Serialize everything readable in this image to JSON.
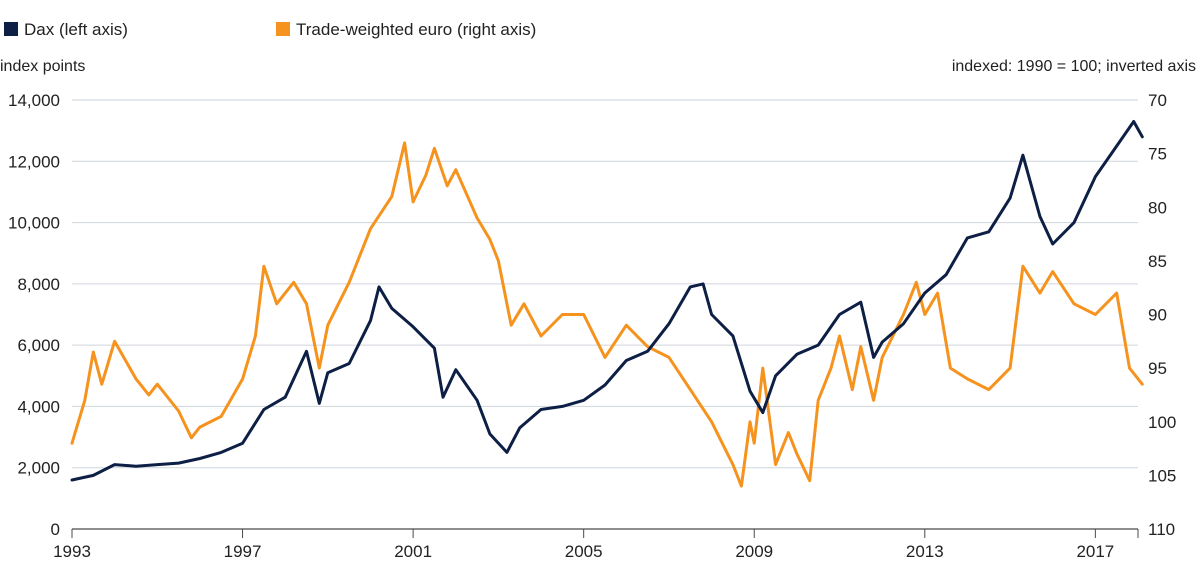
{
  "chart_data": {
    "type": "line",
    "title": "",
    "legend": {
      "placement": "top-left",
      "items": [
        {
          "label": "Dax (left axis)",
          "color": "#0d1f45"
        },
        {
          "label": "Trade-weighted euro (right axis)",
          "color": "#f5931e"
        }
      ]
    },
    "left_axis": {
      "title": "index points",
      "min": 0,
      "max": 14000,
      "ticks": [
        0,
        2000,
        4000,
        6000,
        8000,
        10000,
        12000,
        14000
      ],
      "tick_labels": [
        "0",
        "2,000",
        "4,000",
        "6,000",
        "8,000",
        "10,000",
        "12,000",
        "14,000"
      ]
    },
    "right_axis": {
      "title": "indexed: 1990 = 100; inverted axis",
      "min": 70,
      "max": 110,
      "inverted": true,
      "ticks": [
        70,
        75,
        80,
        85,
        90,
        95,
        100,
        105,
        110
      ],
      "tick_labels": [
        "70",
        "75",
        "80",
        "85",
        "90",
        "95",
        "100",
        "105",
        "110"
      ]
    },
    "x_axis": {
      "min": 1993,
      "max": 2018,
      "ticks": [
        1993,
        1997,
        2001,
        2005,
        2009,
        2013,
        2017
      ],
      "tick_labels": [
        "1993",
        "1997",
        "2001",
        "2005",
        "2009",
        "2013",
        "2017"
      ]
    },
    "grid": true,
    "series": [
      {
        "name": "Dax (left axis)",
        "axis": "left",
        "color": "#0d1f45",
        "points": [
          [
            1993.0,
            1600
          ],
          [
            1993.5,
            1750
          ],
          [
            1994.0,
            2100
          ],
          [
            1994.5,
            2050
          ],
          [
            1995.0,
            2100
          ],
          [
            1995.5,
            2150
          ],
          [
            1996.0,
            2300
          ],
          [
            1996.5,
            2500
          ],
          [
            1997.0,
            2800
          ],
          [
            1997.5,
            3900
          ],
          [
            1998.0,
            4300
          ],
          [
            1998.5,
            5800
          ],
          [
            1998.8,
            4100
          ],
          [
            1999.0,
            5100
          ],
          [
            1999.5,
            5400
          ],
          [
            2000.0,
            6800
          ],
          [
            2000.2,
            7900
          ],
          [
            2000.5,
            7200
          ],
          [
            2001.0,
            6600
          ],
          [
            2001.5,
            5900
          ],
          [
            2001.7,
            4300
          ],
          [
            2002.0,
            5200
          ],
          [
            2002.5,
            4200
          ],
          [
            2002.8,
            3100
          ],
          [
            2003.2,
            2500
          ],
          [
            2003.5,
            3300
          ],
          [
            2004.0,
            3900
          ],
          [
            2004.5,
            4000
          ],
          [
            2005.0,
            4200
          ],
          [
            2005.5,
            4700
          ],
          [
            2006.0,
            5500
          ],
          [
            2006.5,
            5800
          ],
          [
            2007.0,
            6700
          ],
          [
            2007.5,
            7900
          ],
          [
            2007.8,
            8000
          ],
          [
            2008.0,
            7000
          ],
          [
            2008.5,
            6300
          ],
          [
            2008.9,
            4500
          ],
          [
            2009.2,
            3800
          ],
          [
            2009.5,
            5000
          ],
          [
            2010.0,
            5700
          ],
          [
            2010.5,
            6000
          ],
          [
            2011.0,
            7000
          ],
          [
            2011.5,
            7400
          ],
          [
            2011.8,
            5600
          ],
          [
            2012.0,
            6100
          ],
          [
            2012.5,
            6700
          ],
          [
            2013.0,
            7700
          ],
          [
            2013.5,
            8300
          ],
          [
            2014.0,
            9500
          ],
          [
            2014.5,
            9700
          ],
          [
            2015.0,
            10800
          ],
          [
            2015.3,
            12200
          ],
          [
            2015.7,
            10200
          ],
          [
            2016.0,
            9300
          ],
          [
            2016.5,
            10000
          ],
          [
            2017.0,
            11500
          ],
          [
            2017.5,
            12500
          ],
          [
            2017.9,
            13300
          ],
          [
            2018.1,
            12800
          ]
        ]
      },
      {
        "name": "Trade-weighted euro (right axis)",
        "axis": "right",
        "color": "#f5931e",
        "points": [
          [
            1993.0,
            102
          ],
          [
            1993.3,
            98
          ],
          [
            1993.5,
            93.5
          ],
          [
            1993.7,
            96.5
          ],
          [
            1994.0,
            92.5
          ],
          [
            1994.5,
            96
          ],
          [
            1994.8,
            97.5
          ],
          [
            1995.0,
            96.5
          ],
          [
            1995.5,
            99
          ],
          [
            1995.8,
            101.5
          ],
          [
            1996.0,
            100.5
          ],
          [
            1996.5,
            99.5
          ],
          [
            1997.0,
            96
          ],
          [
            1997.3,
            92
          ],
          [
            1997.5,
            85.5
          ],
          [
            1997.8,
            89
          ],
          [
            1998.2,
            87
          ],
          [
            1998.5,
            89
          ],
          [
            1998.8,
            95
          ],
          [
            1999.0,
            91
          ],
          [
            1999.5,
            87
          ],
          [
            2000.0,
            82
          ],
          [
            2000.5,
            79
          ],
          [
            2000.8,
            74
          ],
          [
            2001.0,
            79.5
          ],
          [
            2001.3,
            77
          ],
          [
            2001.5,
            74.5
          ],
          [
            2001.8,
            78
          ],
          [
            2002.0,
            76.5
          ],
          [
            2002.5,
            81
          ],
          [
            2002.8,
            83
          ],
          [
            2003.0,
            85
          ],
          [
            2003.3,
            91
          ],
          [
            2003.6,
            89
          ],
          [
            2004.0,
            92
          ],
          [
            2004.5,
            90
          ],
          [
            2005.0,
            90
          ],
          [
            2005.5,
            94
          ],
          [
            2006.0,
            91
          ],
          [
            2006.5,
            93
          ],
          [
            2007.0,
            94
          ],
          [
            2007.5,
            97
          ],
          [
            2008.0,
            100
          ],
          [
            2008.5,
            104
          ],
          [
            2008.7,
            106
          ],
          [
            2008.9,
            100
          ],
          [
            2009.0,
            102
          ],
          [
            2009.2,
            95
          ],
          [
            2009.5,
            104
          ],
          [
            2009.8,
            101
          ],
          [
            2010.0,
            103
          ],
          [
            2010.3,
            105.5
          ],
          [
            2010.5,
            98
          ],
          [
            2010.8,
            95
          ],
          [
            2011.0,
            92
          ],
          [
            2011.3,
            97
          ],
          [
            2011.5,
            93
          ],
          [
            2011.8,
            98
          ],
          [
            2012.0,
            94
          ],
          [
            2012.5,
            90
          ],
          [
            2012.8,
            87
          ],
          [
            2013.0,
            90
          ],
          [
            2013.3,
            88
          ],
          [
            2013.6,
            95
          ],
          [
            2014.0,
            96
          ],
          [
            2014.5,
            97
          ],
          [
            2015.0,
            95
          ],
          [
            2015.3,
            85.5
          ],
          [
            2015.7,
            88
          ],
          [
            2016.0,
            86
          ],
          [
            2016.5,
            89
          ],
          [
            2017.0,
            90
          ],
          [
            2017.5,
            88
          ],
          [
            2017.8,
            95
          ],
          [
            2018.1,
            96.5
          ]
        ]
      }
    ]
  }
}
